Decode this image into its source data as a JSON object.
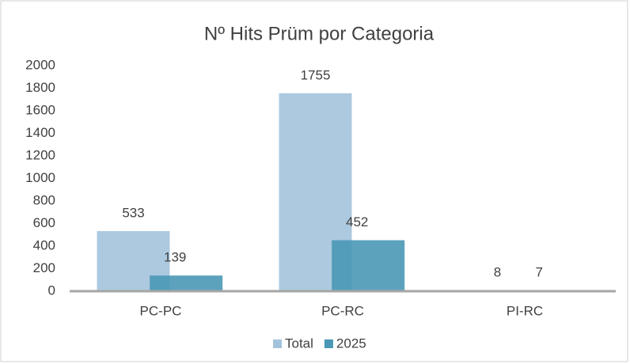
{
  "chart_data": {
    "type": "bar",
    "title": "Nº Hits Prüm por Categoria",
    "categories": [
      "PC-PC",
      "PC-RC",
      "PI-RC"
    ],
    "series": [
      {
        "name": "Total",
        "color": "#a3c3dc",
        "values": [
          533,
          1755,
          8
        ]
      },
      {
        "name": "2025",
        "color": "#4a98b6",
        "values": [
          139,
          452,
          7
        ]
      }
    ],
    "ylim": [
      0,
      2000
    ],
    "yticks": [
      0,
      200,
      400,
      600,
      800,
      1000,
      1200,
      1400,
      1600,
      1800,
      2000
    ],
    "grid": false,
    "legend": "bottom"
  }
}
